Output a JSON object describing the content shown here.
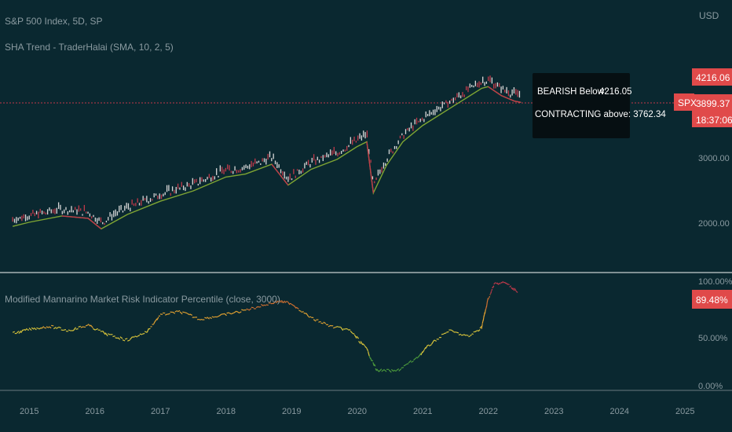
{
  "header": {
    "symbol": "S&P 500 Index, 5D, SP",
    "indicator": "SHA Trend - TraderHalai (SMA, 10, 2, 5)",
    "lower_indicator": "Modified Mannarino Market Risk Indicator Percentile (close, 3000)"
  },
  "price_axis": {
    "currency": "USD",
    "ticks": [
      "3000.00",
      "2000.00"
    ],
    "tick_values": [
      3000,
      2000
    ]
  },
  "percent_axis": {
    "ticks": [
      "100.00%",
      "50.00%",
      "0.00%"
    ],
    "tick_values": [
      100,
      50,
      0
    ]
  },
  "tags": {
    "upper": "4216.06",
    "current": "3899.37",
    "timer": "18:37:06",
    "symbol_badge": "SPX",
    "percentile": "89.48%"
  },
  "info_box": {
    "line1_label": "BEARISH Below:",
    "line1_value": "4216.05",
    "line2": "CONTRACTING above: 3762.34"
  },
  "x_axis": {
    "years": [
      "2015",
      "2016",
      "2017",
      "2018",
      "2019",
      "2020",
      "2021",
      "2022",
      "2023",
      "2024",
      "2025"
    ]
  },
  "colors": {
    "background": "#0a2830",
    "bull": "#7fa533",
    "bear": "#c0394a",
    "tag_red": "#e04a4a",
    "candle": "#d8d8d8"
  },
  "chart_data": [
    {
      "type": "line",
      "title": "S&P 500 Index, 5D, SP",
      "series": [
        {
          "name": "SHA Trend - TraderHalai (SMA, 10, 2, 5)",
          "x": [
            2014.75,
            2015.0,
            2015.5,
            2015.9,
            2016.1,
            2016.5,
            2017.0,
            2017.5,
            2018.0,
            2018.3,
            2018.7,
            2018.95,
            2019.3,
            2019.7,
            2020.0,
            2020.15,
            2020.25,
            2020.45,
            2020.7,
            2021.0,
            2021.5,
            2021.9,
            2022.0,
            2022.2,
            2022.4,
            2022.5
          ],
          "y": [
            1950,
            2000,
            2080,
            2050,
            1920,
            2100,
            2280,
            2430,
            2650,
            2700,
            2870,
            2520,
            2780,
            2960,
            3200,
            3300,
            2400,
            2850,
            3300,
            3650,
            4150,
            4600,
            4650,
            4400,
            4250,
            4216
          ]
        }
      ]
    },
    {
      "type": "line",
      "title": "Modified Mannarino Market Risk Indicator Percentile (close, 3000)",
      "series": [
        {
          "name": "Modified Mannarino Market Risk Indicator Percentile",
          "x": [
            2014.75,
            2015.0,
            2015.3,
            2015.6,
            2015.9,
            2016.2,
            2016.5,
            2016.8,
            2017.0,
            2017.3,
            2017.6,
            2017.9,
            2018.2,
            2018.5,
            2018.8,
            2019.0,
            2019.3,
            2019.6,
            2019.9,
            2020.15,
            2020.3,
            2020.6,
            2020.9,
            2021.1,
            2021.4,
            2021.7,
            2021.9,
            2022.0,
            2022.1,
            2022.25,
            2022.45
          ],
          "y": [
            49,
            53,
            56,
            52,
            57,
            48,
            43,
            51,
            67,
            70,
            63,
            66,
            70,
            75,
            80,
            78,
            64,
            56,
            52,
            34,
            14,
            13,
            25,
            38,
            52,
            46,
            55,
            82,
            97,
            98,
            89.48
          ]
        }
      ]
    }
  ]
}
